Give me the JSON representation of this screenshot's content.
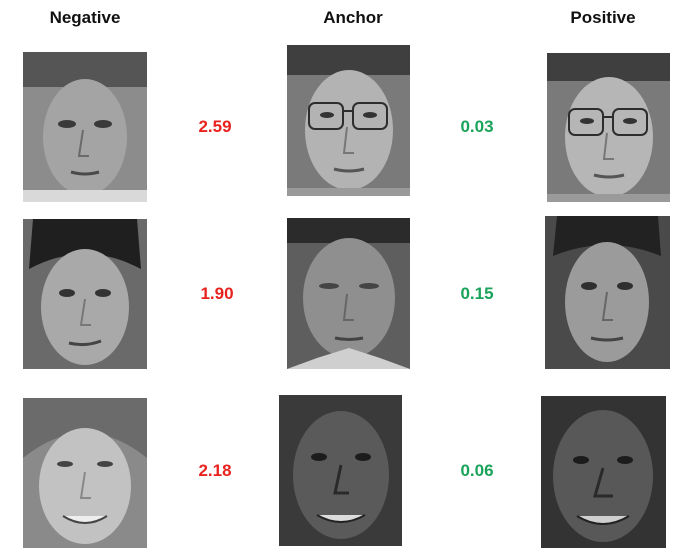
{
  "headers": {
    "negative": "Negative",
    "anchor": "Anchor",
    "positive": "Positive"
  },
  "rows": [
    {
      "negative_distance": "2.59",
      "positive_distance": "0.03",
      "negative_face": "face-photo-young-man-short-hair",
      "anchor_face": "face-photo-man-with-glasses",
      "positive_face": "face-photo-man-with-glasses"
    },
    {
      "negative_distance": "1.90",
      "positive_distance": "0.15",
      "negative_face": "face-photo-man-dark-hair",
      "anchor_face": "face-photo-man-squinting",
      "positive_face": "face-photo-man-neutral"
    },
    {
      "negative_distance": "2.18",
      "positive_distance": "0.06",
      "negative_face": "face-photo-older-woman-smiling",
      "anchor_face": "face-photo-man-smiling",
      "positive_face": "face-photo-man-smiling"
    }
  ],
  "colors": {
    "negative_distance": "#e8231f",
    "positive_distance": "#1aa35a"
  }
}
